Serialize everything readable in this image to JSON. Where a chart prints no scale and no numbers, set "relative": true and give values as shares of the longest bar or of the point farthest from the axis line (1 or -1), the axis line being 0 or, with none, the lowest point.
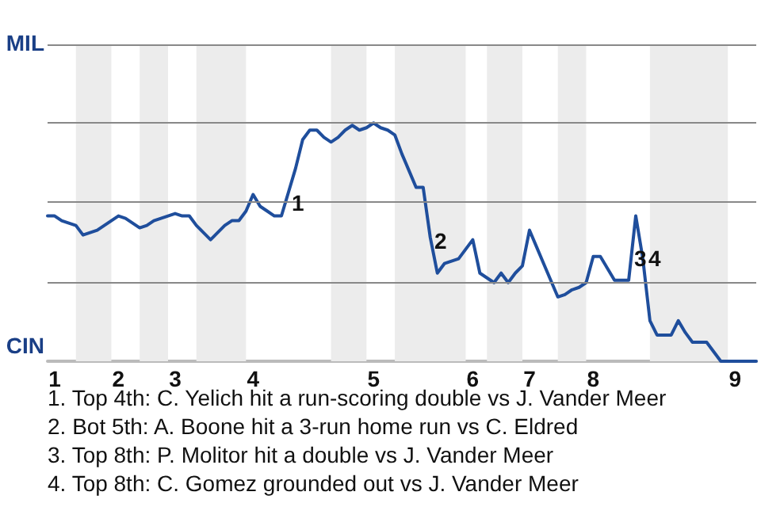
{
  "chart_data": {
    "type": "line",
    "marker": "none",
    "line_style": "solid",
    "relative": true,
    "categories": [
      null,
      "1",
      null,
      null,
      null,
      null,
      null,
      null,
      null,
      null,
      "2",
      null,
      null,
      null,
      null,
      null,
      null,
      null,
      "3",
      null,
      null,
      null,
      null,
      null,
      null,
      null,
      null,
      null,
      null,
      "4",
      null,
      null,
      null,
      null,
      null,
      null,
      null,
      null,
      null,
      null,
      null,
      null,
      null,
      null,
      null,
      null,
      "5",
      null,
      null,
      null,
      null,
      null,
      null,
      null,
      null,
      null,
      null,
      null,
      null,
      null,
      "6",
      null,
      null,
      null,
      null,
      null,
      null,
      null,
      "7",
      null,
      null,
      null,
      null,
      null,
      null,
      null,
      null,
      "8",
      null,
      null,
      null,
      null,
      null,
      null,
      null,
      null,
      null,
      null,
      null,
      null,
      null,
      null,
      null,
      null,
      null,
      null,
      null,
      "9",
      null,
      null,
      null
    ],
    "series": [
      {
        "color": "#1f4e9c",
        "values": [
          0.61,
          0.61,
          0.59,
          0.58,
          0.57,
          0.53,
          0.54,
          0.55,
          0.57,
          0.59,
          0.61,
          0.6,
          0.58,
          0.56,
          0.57,
          0.59,
          0.6,
          0.61,
          0.62,
          0.61,
          0.61,
          0.57,
          0.54,
          0.51,
          0.54,
          0.57,
          0.59,
          0.59,
          0.63,
          0.7,
          0.65,
          0.63,
          0.61,
          0.61,
          0.71,
          0.81,
          0.93,
          0.97,
          0.97,
          0.94,
          0.92,
          0.94,
          0.97,
          0.99,
          0.97,
          0.98,
          1,
          0.98,
          0.97,
          0.95,
          0.87,
          0.8,
          0.73,
          0.73,
          0.52,
          0.37,
          0.41,
          0.42,
          0.43,
          0.47,
          0.51,
          0.37,
          0.35,
          0.33,
          0.37,
          0.33,
          0.37,
          0.4,
          0.55,
          0.48,
          0.41,
          0.34,
          0.27,
          0.28,
          0.3,
          0.31,
          0.33,
          0.44,
          0.44,
          0.39,
          0.34,
          0.34,
          0.34,
          0.61,
          0.43,
          0.17,
          0.11,
          0.11,
          0.11,
          0.17,
          0.12,
          0.08,
          0.08,
          0.08,
          0.04,
          0,
          0,
          0,
          0,
          0,
          0
        ]
      }
    ],
    "ref_lines": [
      {
        "axis": "y",
        "value": 0.33,
        "color": "#888888"
      },
      {
        "axis": "y",
        "value": 0.67,
        "color": "#888888"
      },
      {
        "axis": "y",
        "value": 1,
        "color": "#888888"
      },
      {
        "axis": "y",
        "value": 1.33,
        "color": "#888888"
      }
    ],
    "annotations": [
      "MIL",
      "CIN",
      "1",
      "2",
      "3",
      "4",
      "1. Top 4th: C. Yelich hit a run-scoring double vs J. Vander Meer",
      "2. Bot 5th: A. Boone hit a 3-run home run vs C. Eldred",
      "3. Top 8th: P. Molitor hit a double vs J. Vander Meer",
      "4. Top 8th: C. Gomez grounded out vs J. Vander Meer"
    ]
  }
}
